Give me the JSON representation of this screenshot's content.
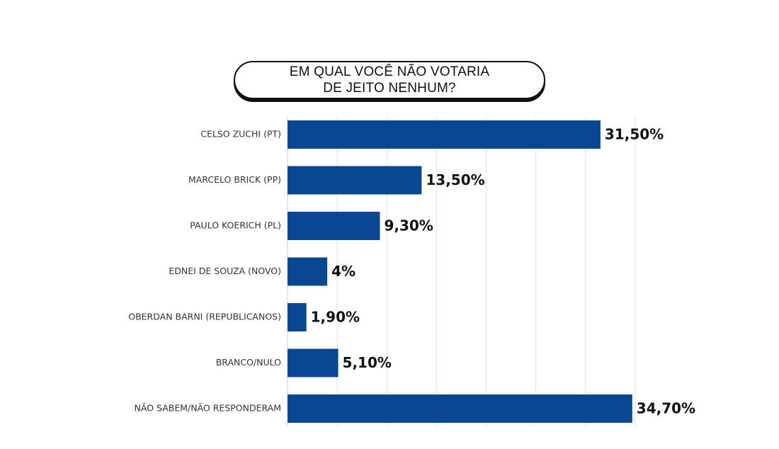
{
  "chart_data": {
    "type": "bar",
    "orientation": "horizontal",
    "title": "EM QUAL VOCÊ NÃO VOTARIA\nDE JEITO NENHUM?",
    "categories": [
      "CELSO ZUCHI (PT)",
      "MARCELO BRICK (PP)",
      "PAULO KOERICH (PL)",
      "EDNEI DE SOUZA (NOVO)",
      "OBERDAN BARNI (REPUBLICANOS)",
      "BRANCO/NULO",
      "NÃO SABEM/NÃO RESPONDERAM"
    ],
    "values": [
      31.5,
      13.5,
      9.3,
      4,
      1.9,
      5.1,
      34.7
    ],
    "value_labels": [
      "31,50%",
      "13,50%",
      "9,30%",
      "4%",
      "1,90%",
      "5,10%",
      "34,70%"
    ],
    "xlim": [
      0,
      35
    ],
    "grid": true,
    "bar_color": "#0a4792",
    "grid_color": "#e2e2e2"
  }
}
